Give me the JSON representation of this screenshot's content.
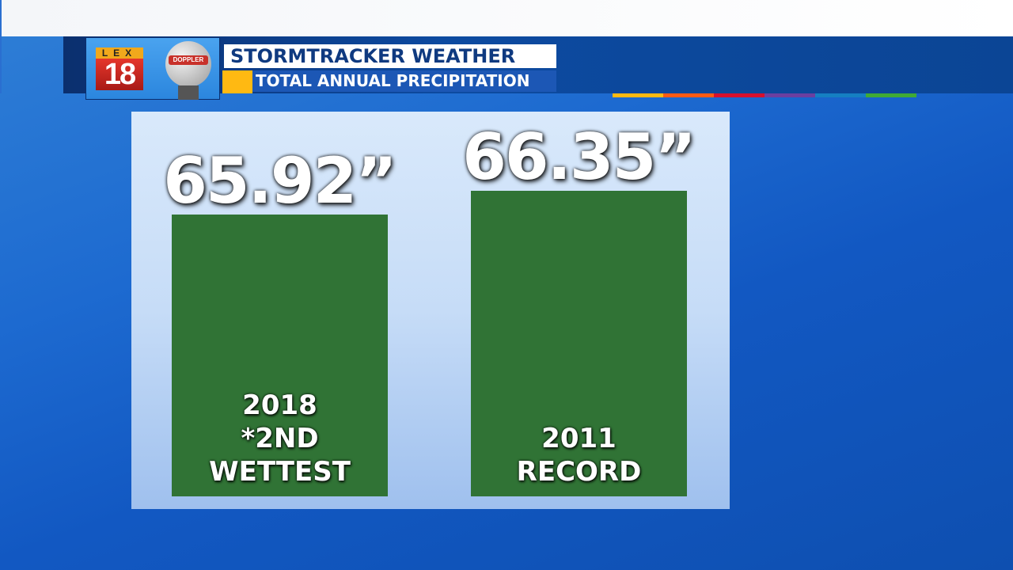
{
  "header": {
    "logo_text": "LEX 18",
    "logo_sub": "MAXTRACK DOPPLER",
    "title": "STORMTRACKER WEATHER",
    "subtitle": "TOTAL ANNUAL PRECIPITATION"
  },
  "stripe_colors": [
    "#ffb912",
    "#ff5a14",
    "#d6102e",
    "#6b3fa0",
    "#157fc2",
    "#3faa35"
  ],
  "chart_data": {
    "type": "bar",
    "title": "TOTAL ANNUAL PRECIPITATION",
    "categories": [
      "2018 *2ND WETTEST",
      "2011 RECORD"
    ],
    "values": [
      65.92,
      66.35
    ],
    "value_labels": [
      "65.92”",
      "66.35”"
    ],
    "category_lines": [
      [
        "2018",
        "*2ND",
        "WETTEST"
      ],
      [
        "2011",
        "RECORD"
      ]
    ],
    "unit": "inches",
    "bar_color": "#307335",
    "ylim": [
      60.8,
      66.35
    ],
    "grid": false,
    "axes_visible": false
  }
}
